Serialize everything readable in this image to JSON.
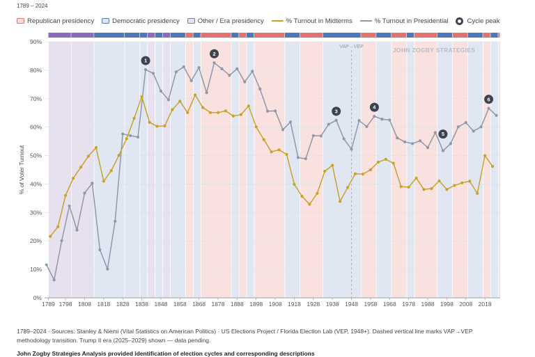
{
  "subtitle": "1789 – 2024",
  "legend": {
    "republican": "Republican presidency",
    "democratic": "Democratic presidency",
    "other": "Other / Era presidency",
    "midterms": "% Turnout in Midterms",
    "presidential": "% Turnout in Presidential",
    "peak": "Cycle peak"
  },
  "colors": {
    "republican_fill": "#f8e1df",
    "republican_bar": "#e2726d",
    "democratic_fill": "#e0e7f2",
    "democratic_bar": "#4b78b8",
    "other_fill": "#e6e0ef",
    "other_bar": "#8a6bbd",
    "midterms": "#c9a227",
    "presidential": "#8f98a8",
    "peak": "#3d4451"
  },
  "annotations": {
    "vap_vep": "VAP→VEP",
    "watermark": "JOHN ZOGBY STRATEGIES"
  },
  "footnote": "1789–2024 · Sources: Stanley & Niemi (Vital Statistics on American Politics) · US Elections Project / Florida Election Lab (VEP, 1948+). Dashed vertical line marks VAP→VEP methodology transition. Trump II era (2025–2029) shown — data pending.",
  "credit": "John Zogby Strategies Analysis provided identification of election cycles and corresponding descriptions",
  "chart_data": {
    "type": "line",
    "ylabel": "% of Voter Turnout",
    "xlim": [
      1787,
      2026
    ],
    "ylim": [
      0,
      90
    ],
    "yticks": [
      0,
      10,
      20,
      30,
      40,
      50,
      60,
      70,
      80,
      90
    ],
    "ytick_labels": [
      "0%",
      "10%",
      "20%",
      "30%",
      "40%",
      "50%",
      "60%",
      "70%",
      "80%",
      "90%"
    ],
    "xticks": [
      1789,
      1798,
      1808,
      1818,
      1828,
      1838,
      1848,
      1858,
      1868,
      1878,
      1888,
      1898,
      1908,
      1918,
      1928,
      1938,
      1948,
      1958,
      1968,
      1978,
      1988,
      1998,
      2008,
      2018
    ],
    "vap_vep_year": 1948,
    "presidencies": [
      {
        "start": 1789,
        "end": 1801,
        "party": "other"
      },
      {
        "start": 1801,
        "end": 1813,
        "party": "other"
      },
      {
        "start": 1813,
        "end": 1829,
        "party": "democratic"
      },
      {
        "start": 1829,
        "end": 1837,
        "party": "democratic"
      },
      {
        "start": 1837,
        "end": 1841,
        "party": "democratic"
      },
      {
        "start": 1841,
        "end": 1845,
        "party": "other"
      },
      {
        "start": 1845,
        "end": 1849,
        "party": "democratic"
      },
      {
        "start": 1849,
        "end": 1853,
        "party": "other"
      },
      {
        "start": 1853,
        "end": 1861,
        "party": "democratic"
      },
      {
        "start": 1861,
        "end": 1865,
        "party": "republican"
      },
      {
        "start": 1865,
        "end": 1869,
        "party": "democratic"
      },
      {
        "start": 1869,
        "end": 1885,
        "party": "republican"
      },
      {
        "start": 1885,
        "end": 1889,
        "party": "democratic"
      },
      {
        "start": 1889,
        "end": 1893,
        "party": "republican"
      },
      {
        "start": 1893,
        "end": 1897,
        "party": "democratic"
      },
      {
        "start": 1897,
        "end": 1913,
        "party": "republican"
      },
      {
        "start": 1913,
        "end": 1921,
        "party": "democratic"
      },
      {
        "start": 1921,
        "end": 1933,
        "party": "republican"
      },
      {
        "start": 1933,
        "end": 1953,
        "party": "democratic"
      },
      {
        "start": 1953,
        "end": 1961,
        "party": "republican"
      },
      {
        "start": 1961,
        "end": 1969,
        "party": "democratic"
      },
      {
        "start": 1969,
        "end": 1977,
        "party": "republican"
      },
      {
        "start": 1977,
        "end": 1981,
        "party": "democratic"
      },
      {
        "start": 1981,
        "end": 1993,
        "party": "republican"
      },
      {
        "start": 1993,
        "end": 2001,
        "party": "democratic"
      },
      {
        "start": 2001,
        "end": 2009,
        "party": "republican"
      },
      {
        "start": 2009,
        "end": 2017,
        "party": "democratic"
      },
      {
        "start": 2017,
        "end": 2021,
        "party": "republican"
      },
      {
        "start": 2021,
        "end": 2025,
        "party": "democratic"
      },
      {
        "start": 2025,
        "end": 2026,
        "party": "republican"
      }
    ],
    "series": [
      {
        "name": "% Turnout in Presidential",
        "x": [
          1788,
          1792,
          1796,
          1800,
          1804,
          1808,
          1812,
          1816,
          1820,
          1824,
          1828,
          1832,
          1836,
          1840,
          1844,
          1848,
          1852,
          1856,
          1860,
          1864,
          1868,
          1872,
          1876,
          1880,
          1884,
          1888,
          1892,
          1896,
          1900,
          1904,
          1908,
          1912,
          1916,
          1920,
          1924,
          1928,
          1932,
          1936,
          1940,
          1944,
          1948,
          1952,
          1956,
          1960,
          1964,
          1968,
          1972,
          1976,
          1980,
          1984,
          1988,
          1992,
          1996,
          2000,
          2004,
          2008,
          2012,
          2016,
          2020,
          2024
        ],
        "y": [
          11.6,
          6.3,
          20.1,
          32.3,
          23.8,
          36.8,
          40.3,
          16.9,
          10.1,
          26.9,
          57.6,
          57.0,
          56.5,
          80.2,
          78.9,
          72.7,
          69.6,
          79.4,
          81.2,
          76.3,
          80.9,
          72.1,
          82.6,
          80.5,
          78.2,
          80.5,
          75.9,
          79.6,
          73.4,
          65.6,
          65.7,
          59.1,
          61.8,
          49.3,
          48.9,
          57.0,
          56.9,
          61.0,
          62.4,
          55.9,
          52.2,
          62.3,
          60.2,
          63.8,
          62.8,
          62.5,
          56.2,
          54.8,
          54.2,
          55.2,
          52.8,
          58.1,
          51.7,
          54.2,
          60.1,
          61.6,
          58.6,
          60.1,
          66.6,
          64.1
        ]
      },
      {
        "name": "% Turnout in Midterms",
        "x": [
          1790,
          1794,
          1798,
          1802,
          1806,
          1810,
          1814,
          1818,
          1822,
          1826,
          1830,
          1834,
          1838,
          1842,
          1846,
          1850,
          1854,
          1858,
          1862,
          1866,
          1870,
          1874,
          1878,
          1882,
          1886,
          1890,
          1894,
          1898,
          1902,
          1906,
          1910,
          1914,
          1918,
          1922,
          1926,
          1930,
          1934,
          1938,
          1942,
          1946,
          1950,
          1954,
          1958,
          1962,
          1966,
          1970,
          1974,
          1978,
          1982,
          1986,
          1990,
          1994,
          1998,
          2002,
          2006,
          2010,
          2014,
          2018,
          2022
        ],
        "y": [
          21.6,
          25.0,
          36.0,
          42.0,
          45.9,
          49.8,
          52.8,
          41.0,
          44.7,
          50.1,
          55.9,
          63.1,
          70.7,
          61.7,
          60.3,
          60.4,
          66.1,
          69.1,
          65.1,
          71.3,
          66.9,
          65.1,
          65.1,
          65.7,
          63.9,
          64.4,
          67.4,
          60.1,
          55.6,
          51.3,
          52.0,
          50.4,
          39.9,
          35.7,
          32.9,
          36.7,
          44.5,
          46.6,
          33.9,
          38.8,
          43.6,
          43.5,
          45.0,
          47.7,
          48.7,
          47.3,
          39.1,
          38.9,
          42.1,
          38.1,
          38.4,
          41.1,
          38.1,
          39.5,
          40.4,
          41.0,
          36.7,
          50.0,
          46.2
        ]
      }
    ],
    "peaks": [
      {
        "label": "1",
        "x": 1840,
        "y": 80.2
      },
      {
        "label": "2",
        "x": 1876,
        "y": 82.6
      },
      {
        "label": "3",
        "x": 1940,
        "y": 62.4
      },
      {
        "label": "4",
        "x": 1960,
        "y": 63.8
      },
      {
        "label": "5",
        "x": 1996,
        "y": 51.7
      },
      {
        "label": "6",
        "x": 2020,
        "y": 66.6
      }
    ]
  }
}
